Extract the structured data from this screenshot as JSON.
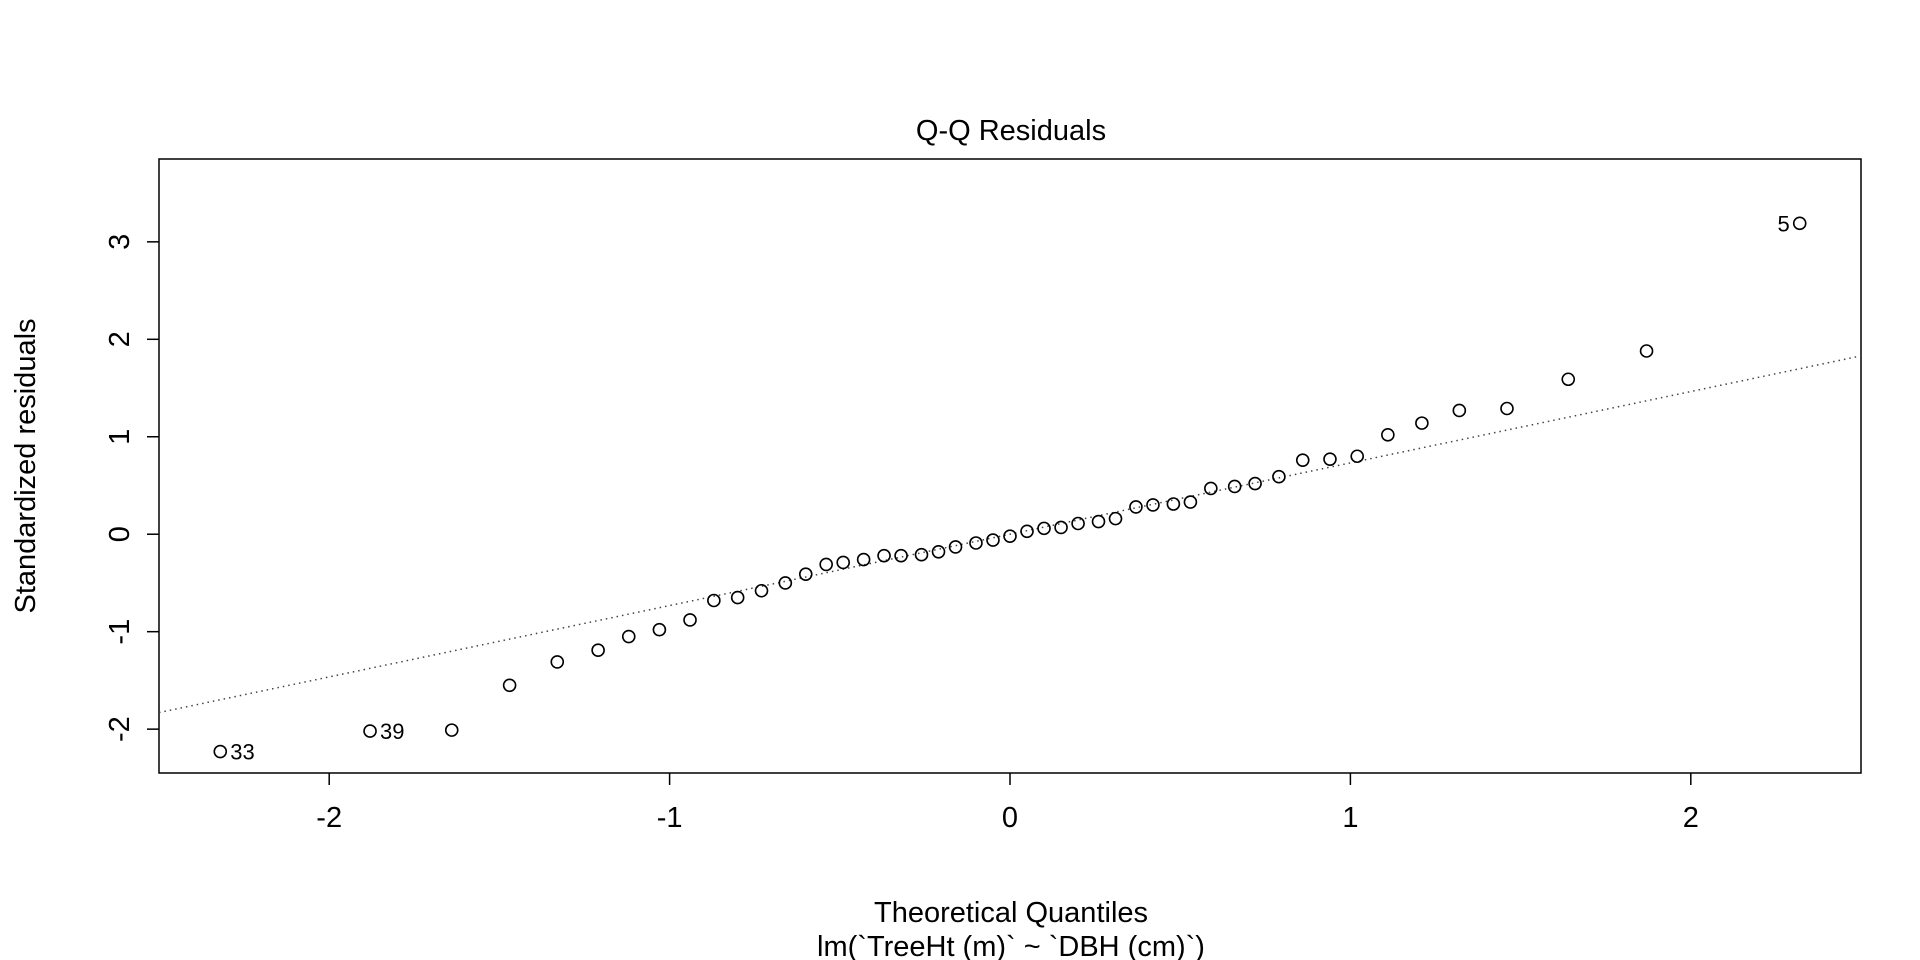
{
  "chart_data": {
    "type": "scatter",
    "title": "Q-Q Residuals",
    "xlabel": "Theoretical Quantiles",
    "subtitle": "lm(`TreeHt (m)` ~ `DBH (cm)`)",
    "ylabel": "Standardized residuals",
    "xlim": [
      -2.5,
      2.5
    ],
    "ylim": [
      -2.45,
      3.85
    ],
    "xticks": [
      -2,
      -1,
      0,
      1,
      2
    ],
    "xtick_labels": [
      "-2",
      "-1",
      "0",
      "1",
      "2"
    ],
    "yticks": [
      -2,
      -1,
      0,
      1,
      2,
      3
    ],
    "ytick_labels": [
      "-2",
      "-1",
      "0",
      "1",
      "2",
      "3"
    ],
    "grid": false,
    "reference_line": {
      "style": "dotted",
      "points": [
        [
          -2.5,
          -1.83
        ],
        [
          2.5,
          1.83
        ]
      ]
    },
    "series": [
      {
        "points": [
          [
            -2.32,
            -2.23
          ],
          [
            -1.88,
            -2.02
          ],
          [
            -1.64,
            -2.01
          ],
          [
            -1.47,
            -1.55
          ],
          [
            -1.33,
            -1.31
          ],
          [
            -1.21,
            -1.19
          ],
          [
            -1.12,
            -1.05
          ],
          [
            -1.03,
            -0.98
          ],
          [
            -0.94,
            -0.88
          ],
          [
            -0.87,
            -0.68
          ],
          [
            -0.8,
            -0.65
          ],
          [
            -0.73,
            -0.58
          ],
          [
            -0.66,
            -0.5
          ],
          [
            -0.6,
            -0.41
          ],
          [
            -0.54,
            -0.31
          ],
          [
            -0.49,
            -0.29
          ],
          [
            -0.43,
            -0.26
          ],
          [
            -0.37,
            -0.22
          ],
          [
            -0.32,
            -0.22
          ],
          [
            -0.26,
            -0.21
          ],
          [
            -0.21,
            -0.18
          ],
          [
            -0.16,
            -0.13
          ],
          [
            -0.1,
            -0.09
          ],
          [
            -0.05,
            -0.06
          ],
          [
            0.0,
            -0.02
          ],
          [
            0.05,
            0.03
          ],
          [
            0.1,
            0.06
          ],
          [
            0.15,
            0.07
          ],
          [
            0.2,
            0.11
          ],
          [
            0.26,
            0.13
          ],
          [
            0.31,
            0.16
          ],
          [
            0.37,
            0.28
          ],
          [
            0.42,
            0.3
          ],
          [
            0.48,
            0.31
          ],
          [
            0.53,
            0.33
          ],
          [
            0.59,
            0.47
          ],
          [
            0.66,
            0.49
          ],
          [
            0.72,
            0.52
          ],
          [
            0.79,
            0.59
          ],
          [
            0.86,
            0.76
          ],
          [
            0.94,
            0.77
          ],
          [
            1.02,
            0.8
          ],
          [
            1.11,
            1.02
          ],
          [
            1.21,
            1.14
          ],
          [
            1.32,
            1.27
          ],
          [
            1.46,
            1.29
          ],
          [
            1.64,
            1.59
          ],
          [
            1.87,
            1.88
          ],
          [
            2.32,
            3.19
          ]
        ]
      }
    ],
    "point_labels": [
      {
        "x": -2.32,
        "y": -2.23,
        "text": "33",
        "side": "right"
      },
      {
        "x": -1.88,
        "y": -2.02,
        "text": "39",
        "side": "right"
      },
      {
        "x": 2.32,
        "y": 3.19,
        "text": "5",
        "side": "left"
      }
    ]
  }
}
